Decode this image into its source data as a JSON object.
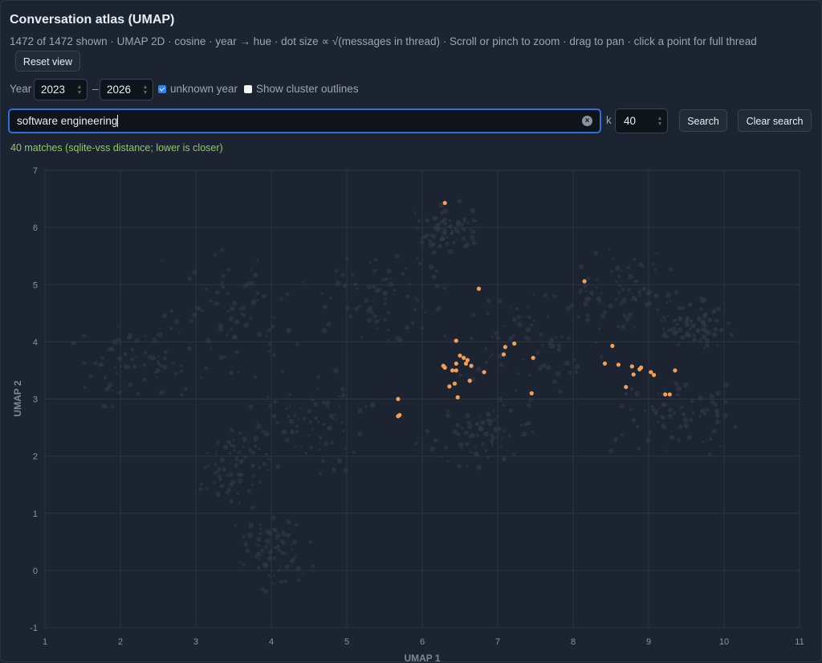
{
  "title": "Conversation atlas (UMAP)",
  "subtitle": "1472 of 1472 shown · UMAP 2D · cosine · year → hue · dot size ∝ √(messages in thread) · Scroll or pinch to zoom · drag to pan · click a point for full thread",
  "reset_label": "Reset view",
  "filters": {
    "year_label": "Year",
    "year_from": "2023",
    "range_sep": "–",
    "year_to": "2026",
    "unknown_year_label": "unknown year",
    "unknown_year_checked": true,
    "cluster_outlines_label": "Show cluster outlines",
    "cluster_outlines_checked": false
  },
  "search": {
    "query": "software engineering",
    "k_label": "k",
    "k_value": "40",
    "search_label": "Search",
    "clear_label": "Clear search",
    "status": "40 matches (sqlite-vss distance; lower is closer)"
  },
  "colors": {
    "match": "#f0a05a",
    "background_point": "#2f3846",
    "grid": "#2c3545",
    "status": "#8fce5a"
  },
  "chart_data": {
    "type": "scatter",
    "xlabel": "UMAP 1",
    "ylabel": "UMAP 2",
    "xlim": [
      1,
      11
    ],
    "ylim": [
      -1,
      7
    ],
    "x_ticks": [
      1,
      2,
      3,
      4,
      5,
      6,
      7,
      8,
      9,
      10,
      11
    ],
    "y_ticks": [
      -1,
      0,
      1,
      2,
      3,
      4,
      5,
      6,
      7
    ],
    "grid": true,
    "series": [
      {
        "values": [
          [
            6.3,
            6.43
          ],
          [
            6.75,
            4.93
          ],
          [
            8.15,
            5.06
          ],
          [
            6.45,
            4.02
          ],
          [
            6.5,
            3.76
          ],
          [
            6.55,
            3.72
          ],
          [
            6.45,
            3.62
          ],
          [
            6.6,
            3.68
          ],
          [
            6.28,
            3.58
          ],
          [
            6.3,
            3.55
          ],
          [
            6.4,
            3.5
          ],
          [
            6.45,
            3.5
          ],
          [
            6.58,
            3.62
          ],
          [
            6.65,
            3.58
          ],
          [
            6.82,
            3.47
          ],
          [
            6.63,
            3.32
          ],
          [
            6.43,
            3.27
          ],
          [
            6.36,
            3.22
          ],
          [
            6.47,
            3.03
          ],
          [
            5.68,
            3.0
          ],
          [
            5.7,
            2.72
          ],
          [
            5.68,
            2.7
          ],
          [
            7.08,
            3.78
          ],
          [
            7.1,
            3.91
          ],
          [
            7.22,
            3.97
          ],
          [
            7.47,
            3.72
          ],
          [
            7.45,
            3.1
          ],
          [
            8.42,
            3.62
          ],
          [
            8.52,
            3.93
          ],
          [
            8.6,
            3.6
          ],
          [
            8.78,
            3.57
          ],
          [
            8.8,
            3.43
          ],
          [
            8.88,
            3.52
          ],
          [
            8.9,
            3.55
          ],
          [
            9.03,
            3.47
          ],
          [
            9.07,
            3.42
          ],
          [
            8.7,
            3.21
          ],
          [
            9.22,
            3.08
          ],
          [
            9.28,
            3.08
          ],
          [
            9.35,
            3.5
          ]
        ]
      }
    ]
  }
}
